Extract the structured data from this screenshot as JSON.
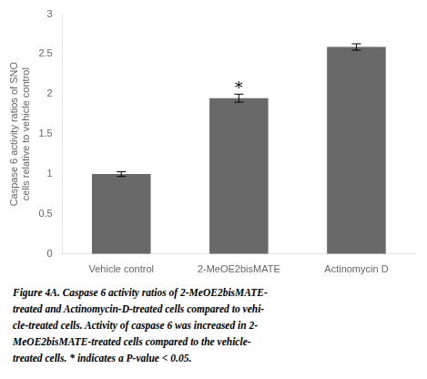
{
  "chart_data": {
    "type": "bar",
    "categories": [
      "Vehicle control",
      "2-MeOE2bisMATE",
      "Actinomycin D"
    ],
    "values": [
      1.0,
      1.95,
      2.59
    ],
    "errors": [
      0.03,
      0.05,
      0.04
    ],
    "color": "#696969",
    "ylabel": "Caspase 6 activity ratios of SNO\ncells relative to vehicle control",
    "ylim": [
      0,
      3.0
    ],
    "yticks": [
      0,
      0.5,
      1.0,
      1.5,
      2.0,
      2.5,
      3.0
    ],
    "annotations": [
      {
        "text": "*",
        "category": "2-MeOE2bisMATE"
      }
    ],
    "caption": [
      "Figure 4A. Caspase 6 activity ratios of 2-MeOE2bisMATE-",
      "treated and Actinomycin-D-treated cells compared to vehi-",
      "cle-treated cells. Activity of caspase 6 was increased in 2-",
      "MeOE2bisMATE-treated cells compared to the vehicle-",
      "treated cells. * indicates a P-value < 0.05."
    ],
    "grid": false
  }
}
